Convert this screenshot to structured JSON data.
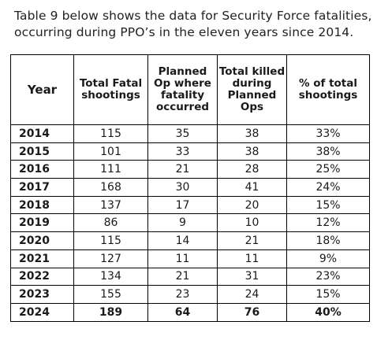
{
  "intro": {
    "line1": "Table 9 below shows the data for Security Force fatalities,",
    "line2": "occurring during PPO’s in the eleven years since 2014."
  },
  "table": {
    "headers": [
      "Year",
      "Total Fatal shootings",
      "Planned Op where fatality occurred",
      "Total killed during Planned Ops",
      "% of total shootings"
    ],
    "rows": [
      [
        "2014",
        "115",
        "35",
        "38",
        "33%"
      ],
      [
        "2015",
        "101",
        "33",
        "38",
        "38%"
      ],
      [
        "2016",
        "111",
        "21",
        "28",
        "25%"
      ],
      [
        "2017",
        "168",
        "30",
        "41",
        "24%"
      ],
      [
        "2018",
        "137",
        "17",
        "20",
        "15%"
      ],
      [
        "2019",
        "86",
        "9",
        "10",
        "12%"
      ],
      [
        "2020",
        "115",
        "14",
        "21",
        "18%"
      ],
      [
        "2021",
        "127",
        "11",
        "11",
        "9%"
      ],
      [
        "2022",
        "134",
        "21",
        "31",
        "23%"
      ],
      [
        "2023",
        "155",
        "23",
        "24",
        "15%"
      ],
      [
        "2024",
        "189",
        "64",
        "76",
        "40%"
      ]
    ]
  }
}
